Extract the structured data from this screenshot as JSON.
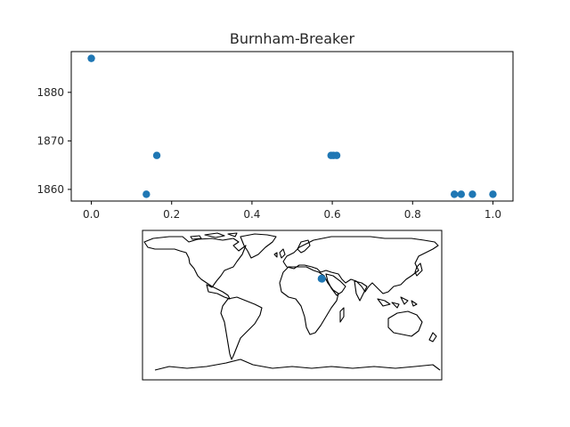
{
  "chart_data": [
    {
      "type": "scatter",
      "title": "Burnham-Breaker",
      "xlabel": "",
      "ylabel": "",
      "xlim": [
        -0.05,
        1.05
      ],
      "ylim": [
        1857.6,
        1888.4
      ],
      "xticks": [
        0.0,
        0.2,
        0.4,
        0.6,
        0.8,
        1.0
      ],
      "xtick_labels": [
        "0.0",
        "0.2",
        "0.4",
        "0.6",
        "0.8",
        "1.0"
      ],
      "yticks": [
        1860,
        1870,
        1880
      ],
      "ytick_labels": [
        "1860",
        "1870",
        "1880"
      ],
      "grid": false,
      "marker_color": "#1f77b4",
      "x": [
        0.0,
        0.137,
        0.163,
        0.597,
        0.603,
        0.611,
        0.904,
        0.921,
        0.949,
        1.0
      ],
      "y": [
        1887,
        1859,
        1867,
        1867,
        1867,
        1867,
        1859,
        1859,
        1859,
        1859
      ]
    },
    {
      "type": "scatter",
      "subtype": "map",
      "projection": "plate-carree",
      "xlim": [
        -180,
        180
      ],
      "ylim": [
        -90,
        90
      ],
      "coastline_color": "#000000",
      "marker_color": "#1f77b4",
      "lon": [
        35.2,
        35.5,
        36.0
      ],
      "lat": [
        31.8,
        32.2,
        31.6
      ]
    }
  ]
}
